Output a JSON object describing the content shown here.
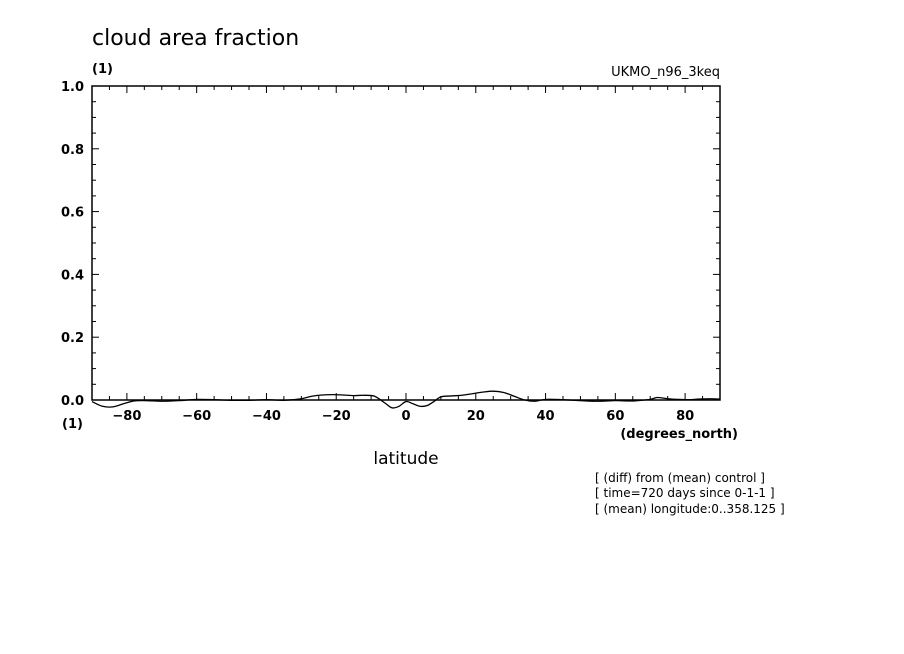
{
  "chart_data": {
    "type": "line",
    "title": "cloud area fraction",
    "yunits": "(1)",
    "xunits_left": "(1)",
    "dataset": "UKMO_n96_3keq",
    "xlabel": "latitude",
    "xunits": "(degrees_north)",
    "xlim": [
      -90,
      90
    ],
    "ylim": [
      0,
      1
    ],
    "xticks": [
      -80,
      -60,
      -40,
      -20,
      0,
      20,
      40,
      60,
      80
    ],
    "xtick_labels": [
      "−80",
      "−60",
      "−40",
      "−20",
      "0",
      "20",
      "40",
      "60",
      "80"
    ],
    "yticks": [
      0,
      0.2,
      0.4,
      0.6,
      0.8,
      1.0
    ],
    "ytick_labels": [
      "0.0",
      "0.2",
      "0.4",
      "0.6",
      "0.8",
      "1.0"
    ],
    "grid": false,
    "notes": [
      "[ (diff) from (mean) control ]",
      "[ time=720 days since 0-1-1 ]",
      "[ (mean) longitude:0..358.125 ]"
    ],
    "series": [
      {
        "x": [
          -90,
          -87,
          -84,
          -81,
          -78,
          -75,
          -70,
          -65,
          -60,
          -55,
          -50,
          -45,
          -40,
          -35,
          -30,
          -27,
          -24,
          -21,
          -18,
          -15,
          -12,
          -9,
          -6,
          -4,
          -2,
          0,
          2,
          4,
          6,
          8,
          10,
          13,
          16,
          19,
          22,
          25,
          28,
          31,
          34,
          37,
          40,
          45,
          50,
          55,
          60,
          65,
          70,
          72,
          75,
          78,
          81,
          84,
          87,
          90
        ],
        "y": [
          -0.005,
          -0.02,
          -0.022,
          -0.012,
          -0.003,
          -0.002,
          -0.004,
          -0.002,
          0.002,
          0.001,
          -0.001,
          -0.001,
          0.001,
          -0.001,
          0.004,
          0.012,
          0.016,
          0.017,
          0.016,
          0.014,
          0.015,
          0.012,
          -0.01,
          -0.025,
          -0.02,
          -0.005,
          -0.012,
          -0.02,
          -0.018,
          -0.005,
          0.01,
          0.013,
          0.015,
          0.02,
          0.025,
          0.028,
          0.024,
          0.012,
          0.0,
          -0.004,
          0.002,
          0.001,
          -0.002,
          -0.004,
          -0.002,
          -0.003,
          0.002,
          0.008,
          0.004,
          0.002,
          0.001,
          0.003,
          0.004,
          0.003
        ]
      }
    ]
  }
}
